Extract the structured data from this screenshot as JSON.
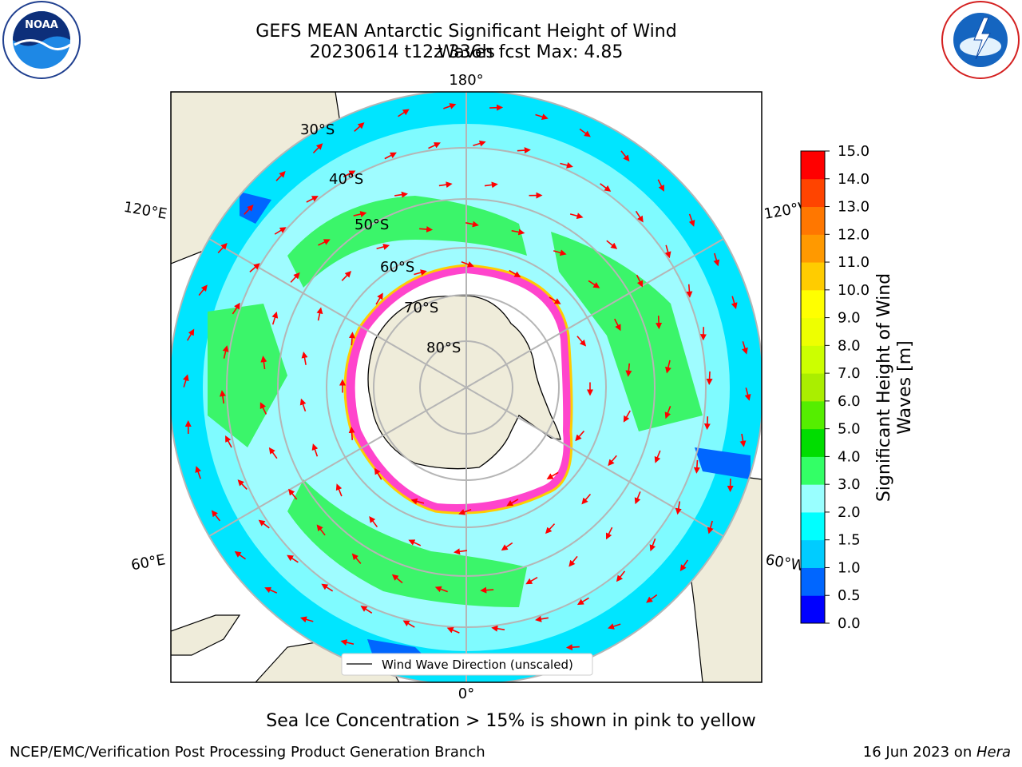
{
  "header": {
    "title_line1": "GEFS MEAN Antarctic Significant Height of Wind Waves",
    "title_line2": "20230614 t12z 336h fcst   Max: 4.85"
  },
  "logos": {
    "left": "noaa-logo",
    "right": "national-weather-service-logo",
    "right_text": "NATIONAL WEATHER SERVICE"
  },
  "map": {
    "projection": "south-polar-stereographic",
    "longitude_labels": {
      "top": "180°",
      "bottom": "0°",
      "upper_left": "120°E",
      "lower_left": "60°E",
      "upper_right": "120°W",
      "lower_right": "60°W"
    },
    "latitude_labels": [
      "30°S",
      "40°S",
      "50°S",
      "60°S",
      "70°S",
      "80°S"
    ],
    "legend_label": "Wind Wave Direction (unscaled)",
    "arrow_color": "#ff0000"
  },
  "colorbar": {
    "label_line1": "Significant Height of Wind",
    "label_line2": "Waves [m]",
    "ticks": [
      "0.0",
      "0.5",
      "1.0",
      "1.5",
      "2.0",
      "3.0",
      "4.0",
      "5.0",
      "6.0",
      "7.0",
      "8.0",
      "9.0",
      "10.0",
      "11.0",
      "12.0",
      "13.0",
      "14.0",
      "15.0"
    ],
    "colors": [
      "#0000ff",
      "#0066ff",
      "#00ccff",
      "#00ffff",
      "#99ffff",
      "#33ff66",
      "#00dd00",
      "#55ee00",
      "#aaee00",
      "#ccff00",
      "#eeff00",
      "#ffff00",
      "#ffcc00",
      "#ff9900",
      "#ff7700",
      "#ff4400",
      "#ff0000"
    ]
  },
  "footer": {
    "note": "Sea Ice Concentration > 15% is shown in pink to yellow",
    "left": "NCEP/EMC/Verification Post Processing Product Generation Branch",
    "right_prefix": "16 Jun 2023 on ",
    "right_host": "Hera"
  }
}
